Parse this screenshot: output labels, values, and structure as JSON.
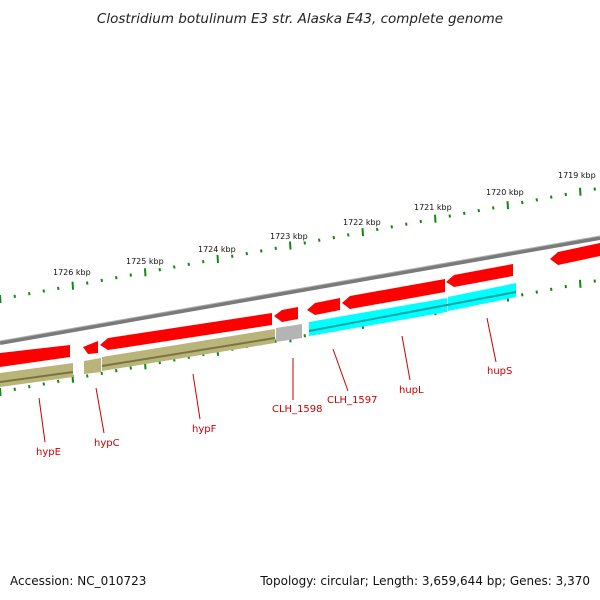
{
  "title": "Clostridium botulinum E3 str. Alaska E43, complete genome",
  "ticks": [
    {
      "label": "1726 kbp"
    },
    {
      "label": "1725 kbp"
    },
    {
      "label": "1724 kbp"
    },
    {
      "label": "1723 kbp"
    },
    {
      "label": "1722 kbp"
    },
    {
      "label": "1721 kbp"
    },
    {
      "label": "1720 kbp"
    },
    {
      "label": "1719 kbp"
    }
  ],
  "gene_labels": [
    "hypE",
    "hypC",
    "hypF",
    "CLH_1598",
    "CLH_1597",
    "hupL",
    "hupS"
  ],
  "colors": {
    "forward_cds": "#ff0000",
    "olive_feature": "#b8b47a",
    "cyan_feature": "#00ffff",
    "grey_feature": "#b4b4b4",
    "backbone": "#808080",
    "ticks": "#118811",
    "gene_label": "#cc0000"
  },
  "footer": {
    "accession": "Accession: NC_010723",
    "topology": "Topology: circular; Length: 3,659,644 bp; Genes: 3,370"
  }
}
